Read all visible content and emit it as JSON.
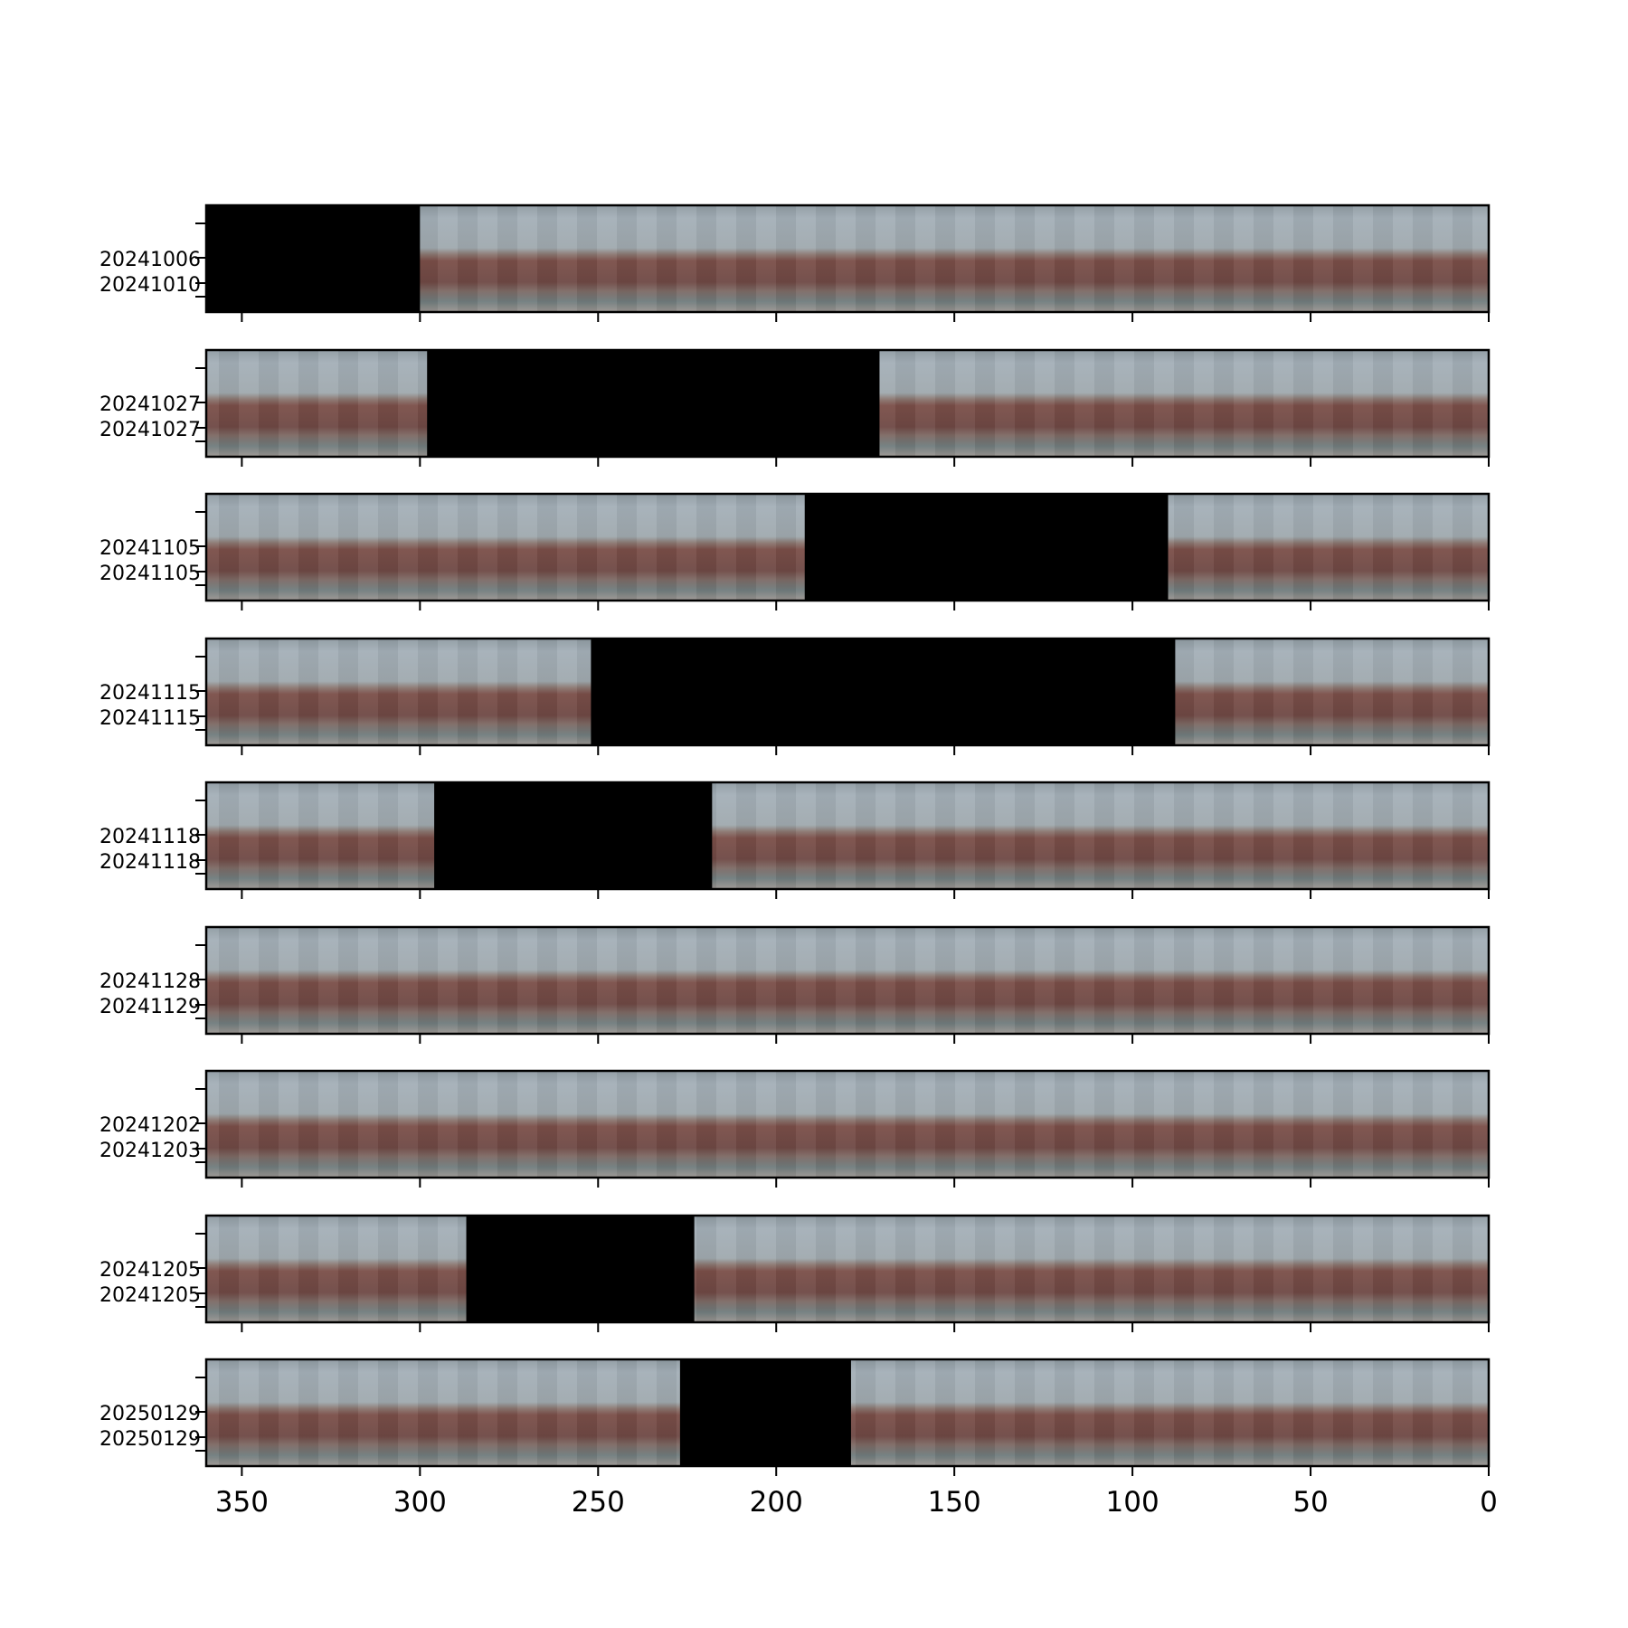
{
  "chart_data": {
    "type": "heatmap",
    "title": "",
    "xlabel": "",
    "ylabel": "",
    "x_axis": {
      "reversed": true,
      "xlim": [
        360,
        0
      ],
      "ticks": [
        350,
        300,
        250,
        200,
        150,
        100,
        50,
        0
      ],
      "tick_labels": [
        "350",
        "300",
        "250",
        "200",
        "150",
        "100",
        "50",
        "0"
      ]
    },
    "y_tick_labels_format": "YYYYMMDD",
    "colors": {
      "sky": "#9aa6ae",
      "horizon": "#8a6e69",
      "ground": "#6e4a45",
      "ground_dark": "#5a3f3c",
      "foreground": "#8c8f8e",
      "no_data": "#000000"
    },
    "panels": [
      {
        "labels": [
          "20241006",
          "20241010"
        ],
        "no_data": [
          [
            360,
            300
          ]
        ]
      },
      {
        "labels": [
          "20241027",
          "20241027"
        ],
        "no_data": [
          [
            298,
            171
          ]
        ]
      },
      {
        "labels": [
          "20241105",
          "20241105"
        ],
        "no_data": [
          [
            192,
            90
          ]
        ]
      },
      {
        "labels": [
          "20241115",
          "20241115"
        ],
        "no_data": [
          [
            252,
            88
          ]
        ]
      },
      {
        "labels": [
          "20241118",
          "20241118"
        ],
        "no_data": [
          [
            296,
            218
          ]
        ]
      },
      {
        "labels": [
          "20241128",
          "20241129"
        ],
        "no_data": []
      },
      {
        "labels": [
          "20241202",
          "20241203"
        ],
        "no_data": []
      },
      {
        "labels": [
          "20241205",
          "20241205"
        ],
        "no_data": [
          [
            287,
            223
          ]
        ]
      },
      {
        "labels": [
          "20250129",
          "20250129"
        ],
        "no_data": [
          [
            227,
            179
          ]
        ]
      }
    ]
  }
}
